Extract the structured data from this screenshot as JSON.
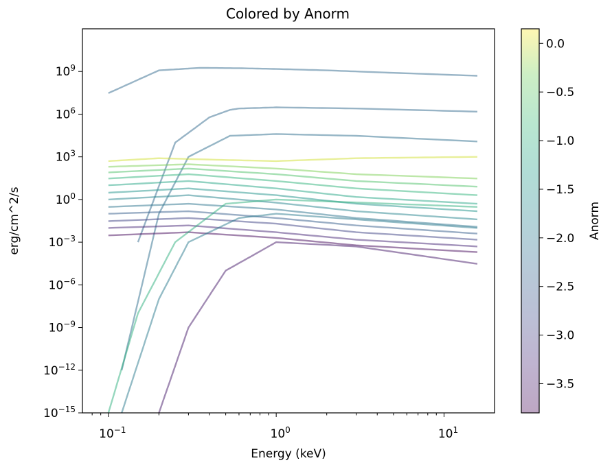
{
  "chart_data": {
    "type": "line",
    "title": "Colored by Anorm",
    "xlabel": "Energy (keV)",
    "ylabel": "erg/cm^2/s",
    "xscale": "log",
    "yscale": "log",
    "xlim": [
      0.07,
      20
    ],
    "ylim": [
      1e-15,
      1000000000000.0
    ],
    "x_ticks": [
      {
        "value": 0.1,
        "base": "10",
        "exp": "−1"
      },
      {
        "value": 1,
        "base": "10",
        "exp": "0"
      },
      {
        "value": 10,
        "base": "10",
        "exp": "1"
      }
    ],
    "y_ticks": [
      {
        "value": 1e-15,
        "base": "10",
        "exp": "−15"
      },
      {
        "value": 1e-12,
        "base": "10",
        "exp": "−12"
      },
      {
        "value": 1e-09,
        "base": "10",
        "exp": "−9"
      },
      {
        "value": 1e-06,
        "base": "10",
        "exp": "−6"
      },
      {
        "value": 0.001,
        "base": "10",
        "exp": "−3"
      },
      {
        "value": 1,
        "base": "10",
        "exp": "0"
      },
      {
        "value": 1000.0,
        "base": "10",
        "exp": "3"
      },
      {
        "value": 1000000.0,
        "base": "10",
        "exp": "6"
      },
      {
        "value": 1000000000.0,
        "base": "10",
        "exp": "9"
      }
    ],
    "energy_range_keV": [
      0.1,
      15.8
    ],
    "edge_feature_keV": 0.53,
    "grid": false,
    "colorbar": {
      "label": "Anorm",
      "colormap": "viridis",
      "alpha": 0.35,
      "range": [
        -3.8,
        0.15
      ],
      "ticks": [
        {
          "value": 0.0,
          "label": "0.0"
        },
        {
          "value": -0.5,
          "label": "−0.5"
        },
        {
          "value": -1.0,
          "label": "−1.0"
        },
        {
          "value": -1.5,
          "label": "−1.5"
        },
        {
          "value": -2.0,
          "label": "−2.0"
        },
        {
          "value": -2.5,
          "label": "−2.5"
        },
        {
          "value": -3.0,
          "label": "−3.0"
        },
        {
          "value": -3.5,
          "label": "−3.5"
        }
      ]
    },
    "series": [
      {
        "anorm": -2.3,
        "x": [
          0.1,
          0.2,
          0.35,
          0.6,
          1,
          2,
          5,
          15.8
        ],
        "y": [
          30000000.0,
          1200000000.0,
          1800000000.0,
          1700000000.0,
          1500000000.0,
          1200000000.0,
          800000000.0,
          500000000.0
        ]
      },
      {
        "anorm": -2.3,
        "x": [
          0.15,
          0.25,
          0.4,
          0.53,
          0.6,
          1,
          3,
          15.8
        ],
        "y": [
          0.001,
          10000.0,
          600000.0,
          2000000.0,
          2500000.0,
          3000000.0,
          2500000.0,
          1500000.0
        ]
      },
      {
        "anorm": -2.2,
        "x": [
          0.12,
          0.2,
          0.3,
          0.53,
          1,
          3,
          15.8
        ],
        "y": [
          1e-12,
          0.1,
          1000.0,
          30000.0,
          40000.0,
          30000.0,
          12000.0
        ]
      },
      {
        "anorm": 0.0,
        "x": [
          0.1,
          0.2,
          0.5,
          1,
          3,
          15.8
        ],
        "y": [
          500,
          800,
          600,
          500,
          800,
          1000
        ]
      },
      {
        "anorm": -0.3,
        "x": [
          0.1,
          0.3,
          1,
          3,
          15.8
        ],
        "y": [
          200,
          300,
          150,
          60,
          30
        ]
      },
      {
        "anorm": -0.6,
        "x": [
          0.1,
          0.3,
          1,
          3,
          15.8
        ],
        "y": [
          80,
          150,
          60,
          20,
          8
        ]
      },
      {
        "anorm": -0.9,
        "x": [
          0.1,
          0.3,
          1,
          3,
          15.8
        ],
        "y": [
          30,
          60,
          20,
          6,
          2
        ]
      },
      {
        "anorm": -1.2,
        "x": [
          0.1,
          0.3,
          1,
          3,
          15.8
        ],
        "y": [
          10,
          20,
          6,
          1.5,
          0.5
        ]
      },
      {
        "anorm": -1.5,
        "x": [
          0.1,
          0.3,
          1,
          3,
          15.8
        ],
        "y": [
          3,
          6,
          2,
          0.5,
          0.15
        ]
      },
      {
        "anorm": -1.8,
        "x": [
          0.1,
          0.3,
          1,
          3,
          15.8
        ],
        "y": [
          1,
          2,
          0.6,
          0.15,
          0.04
        ]
      },
      {
        "anorm": -2.1,
        "x": [
          0.1,
          0.3,
          1,
          3,
          15.8
        ],
        "y": [
          0.3,
          0.5,
          0.2,
          0.05,
          0.012
        ]
      },
      {
        "anorm": -2.5,
        "x": [
          0.1,
          0.3,
          1,
          3,
          15.8
        ],
        "y": [
          0.1,
          0.15,
          0.05,
          0.015,
          0.004
        ]
      },
      {
        "anorm": -2.9,
        "x": [
          0.1,
          0.3,
          1,
          3,
          15.8
        ],
        "y": [
          0.03,
          0.05,
          0.02,
          0.005,
          0.0015
        ]
      },
      {
        "anorm": -3.3,
        "x": [
          0.1,
          0.3,
          1,
          3,
          15.8
        ],
        "y": [
          0.01,
          0.015,
          0.005,
          0.0015,
          0.0005
        ]
      },
      {
        "anorm": -3.7,
        "x": [
          0.1,
          0.3,
          1,
          3,
          15.8
        ],
        "y": [
          0.003,
          0.005,
          0.002,
          0.0006,
          0.0002
        ]
      },
      {
        "anorm": -3.5,
        "x": [
          0.2,
          0.3,
          0.5,
          1,
          3,
          15.8
        ],
        "y": [
          1e-15,
          1e-09,
          1e-05,
          0.001,
          0.0005,
          3e-05
        ]
      },
      {
        "anorm": -1.0,
        "x": [
          0.1,
          0.15,
          0.25,
          0.5,
          1,
          15.8
        ],
        "y": [
          1e-15,
          1e-08,
          0.001,
          0.5,
          1,
          0.3
        ]
      },
      {
        "anorm": -2.0,
        "x": [
          0.12,
          0.2,
          0.3,
          0.6,
          1,
          15.8
        ],
        "y": [
          1e-15,
          1e-07,
          0.001,
          0.05,
          0.1,
          0.01
        ]
      }
    ]
  }
}
